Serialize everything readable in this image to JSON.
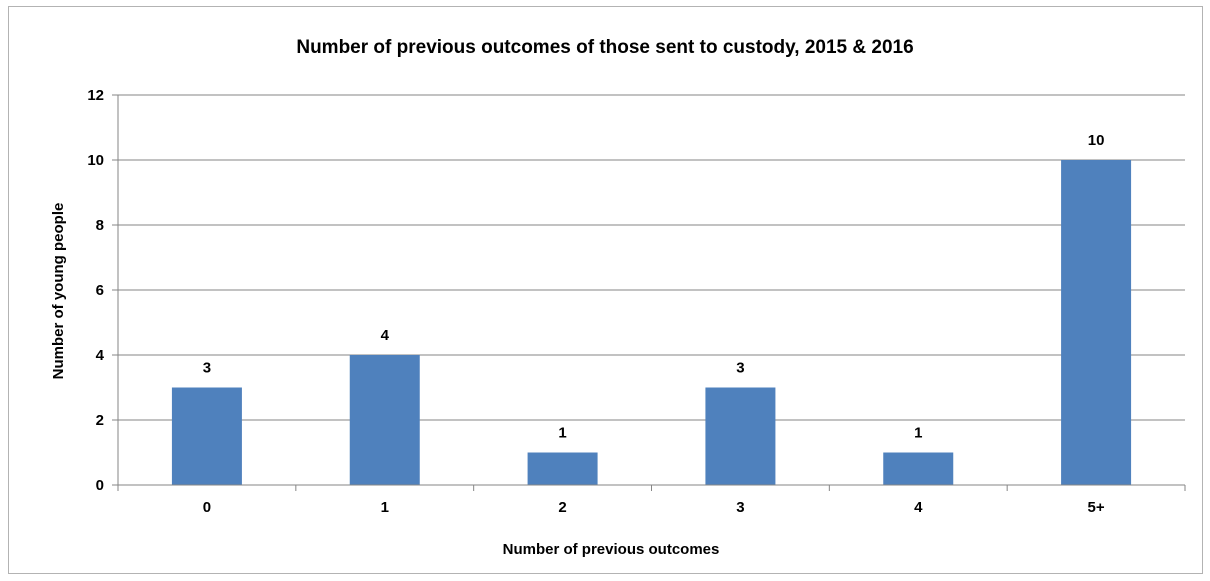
{
  "chart_data": {
    "type": "bar",
    "title": "Number of previous outcomes of those sent to custody, 2015 & 2016",
    "xlabel": "Number of previous outcomes",
    "ylabel": "Number of young people",
    "categories": [
      "0",
      "1",
      "2",
      "3",
      "4",
      "5+"
    ],
    "values": [
      3,
      4,
      1,
      3,
      1,
      10
    ],
    "data_labels": [
      "3",
      "4",
      "1",
      "3",
      "1",
      "10"
    ],
    "ylim": [
      0,
      12
    ],
    "yticks": [
      0,
      2,
      4,
      6,
      8,
      10,
      12
    ],
    "grid": true,
    "legend": "none",
    "bar_color": "#4f81bd",
    "grid_color": "#868686"
  }
}
